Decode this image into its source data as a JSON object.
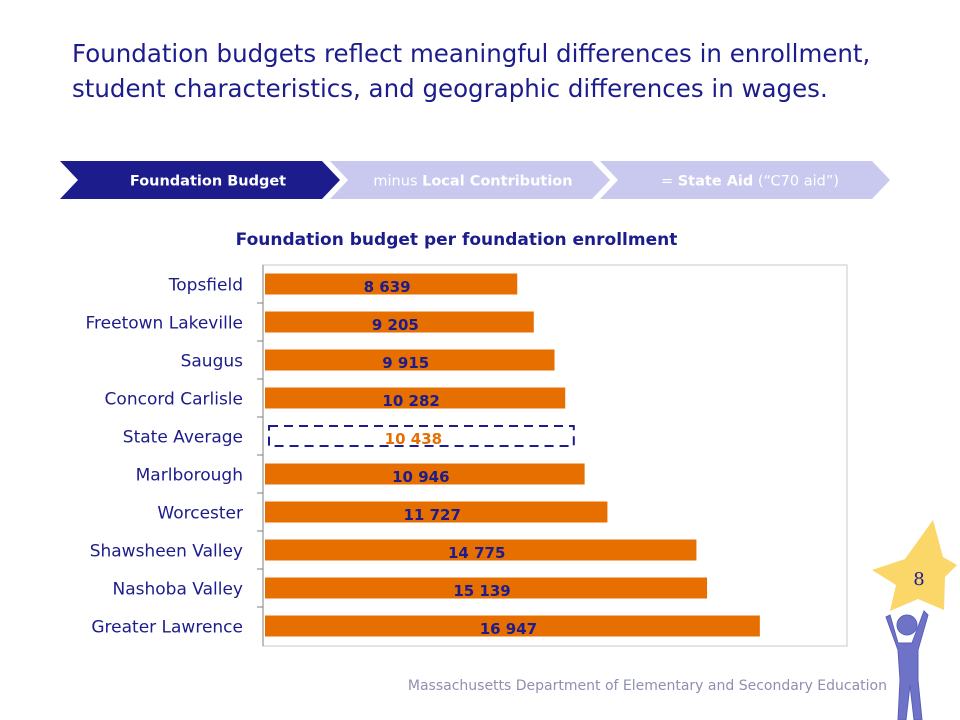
{
  "slide": {
    "title": "Foundation budgets reflect meaningful differences in enrollment, student characteristics, and geographic differences in wages.",
    "footer": "Massachusetts Department of Elementary and Secondary Education",
    "page_number": "8"
  },
  "process_steps": [
    {
      "prefix": "",
      "bold": "Foundation Budget",
      "suffix": "",
      "active": true
    },
    {
      "prefix": "minus ",
      "bold": "Local Contribution",
      "suffix": "",
      "active": false
    },
    {
      "prefix": "= ",
      "bold": "State Aid",
      "suffix": " (“C70 aid”)",
      "active": false
    }
  ],
  "colors": {
    "title": "#1c1c8c",
    "bar": "#e76f00",
    "highlight_label": "#e76f00",
    "label": "#1c1c8c",
    "chevron_active": "#1c1c8c",
    "chevron_inactive": "#c9c9f0",
    "chevron_inactive_text": "#ffffff",
    "star": "#fbd669"
  },
  "chart_data": {
    "type": "bar",
    "orientation": "horizontal",
    "title": "Foundation budget per foundation enrollment",
    "categories": [
      "Topsfield",
      "Freetown Lakeville",
      "Saugus",
      "Concord Carlisle",
      "State Average",
      "Marlborough",
      "Worcester",
      "Shawsheen Valley",
      "Nashoba Valley",
      "Greater Lawrence"
    ],
    "values": [
      8639,
      9205,
      9915,
      10282,
      10438,
      10946,
      11727,
      14775,
      15139,
      16947
    ],
    "value_labels": [
      "8 639",
      "9 205",
      "9 915",
      "10 282",
      "10 438",
      "10 946",
      "11 727",
      "14 775",
      "15 139",
      "16 947"
    ],
    "highlighted_category": "State Average",
    "highlight_style": "dashed-outline",
    "xlim": [
      0,
      20000
    ],
    "grid": false,
    "legend": "none"
  }
}
